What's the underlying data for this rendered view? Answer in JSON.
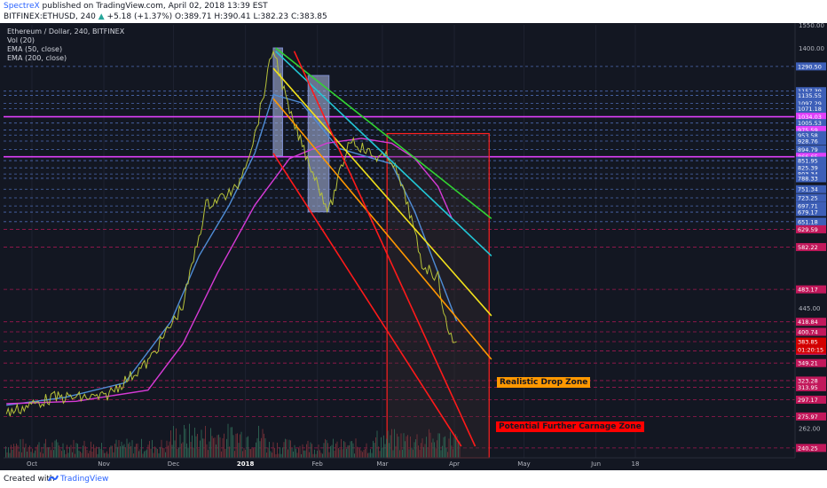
{
  "header": {
    "author": "SpectreX",
    "published": "published on TradingView.com, April 02, 2018 13:39 EST",
    "symbol": "BITFINEX:ETHUSD, 240",
    "change": "+5.18 (+1.37%)",
    "open": "O:389.71",
    "high": "H:390.41",
    "low": "L:382.23",
    "close": "C:383.85"
  },
  "legend": {
    "title": "Ethereum / Dollar, 240, BITFINEX",
    "vol": "Vol (20)",
    "ema50": "EMA (50, close)",
    "ema200": "EMA (200, close)"
  },
  "footer": {
    "created": "Created with",
    "brand": "TradingView"
  },
  "zones": {
    "realistic": "Realistic Drop Zone",
    "carnage": "Potential Further Carnage Zone"
  },
  "colors": {
    "background": "#131722",
    "ema50": "#4f8dd6",
    "ema200": "#d63ad6",
    "green_line": "#32d432",
    "cyan_line": "#22c7d6",
    "yellow_line": "#f2e21b",
    "orange_line": "#ff9800",
    "red_line": "#ff1a1a",
    "magenta_level": "#e040fb"
  },
  "chart_data": {
    "type": "line",
    "title": "Ethereum / Dollar, 240, BITFINEX",
    "y_scale": "log",
    "ylim": [
      230,
      1550
    ],
    "x_tick_labels": [
      "Oct",
      "Nov",
      "Dec",
      "2018",
      "Feb",
      "Mar",
      "Apr",
      "May",
      "Jun",
      "18"
    ],
    "x_tick_dates": [
      "2017-10-01",
      "2017-11-01",
      "2017-12-01",
      "2018-01-01",
      "2018-02-01",
      "2018-03-01",
      "2018-04-01",
      "2018-05-01",
      "2018-06-01",
      "2018-06-18"
    ],
    "y_tick_labels": [
      "1550.00",
      "1400.00",
      "445.00",
      "262.00"
    ],
    "price_levels": [
      "1290.50",
      "1157.39",
      "1135.55",
      "1097.29",
      "1071.18",
      "1034.03",
      "1005.53",
      "975.59",
      "953.58",
      "928.76",
      "894.79",
      "866.65",
      "851.95",
      "825.39",
      "803.34",
      "788.33",
      "751.34",
      "723.25",
      "697.71",
      "679.17",
      "651.18",
      "629.59",
      "582.22",
      "483.17",
      "418.84",
      "400.74",
      "383.85",
      "368.51",
      "349.21",
      "323.28",
      "313.95",
      "297.17",
      "275.97",
      "240.25"
    ],
    "magenta_levels": [
      1034.03,
      866.65
    ],
    "last_price": "383.85",
    "countdown": "01:20:15",
    "series": [
      {
        "name": "EMA (50, close)",
        "x": [
          "2017-09-20",
          "2017-10-15",
          "2017-11-10",
          "2017-11-30",
          "2017-12-12",
          "2017-12-25",
          "2018-01-05",
          "2018-01-13",
          "2018-01-25",
          "2018-02-10",
          "2018-02-25",
          "2018-03-05",
          "2018-03-15",
          "2018-03-25",
          "2018-04-02"
        ],
        "y": [
          290,
          300,
          320,
          420,
          560,
          700,
          880,
          1140,
          1100,
          900,
          860,
          840,
          680,
          520,
          420
        ]
      },
      {
        "name": "EMA (200, close)",
        "x": [
          "2017-09-20",
          "2017-10-20",
          "2017-11-20",
          "2017-12-05",
          "2017-12-20",
          "2018-01-05",
          "2018-01-20",
          "2018-02-05",
          "2018-02-20",
          "2018-03-05",
          "2018-03-15",
          "2018-03-25",
          "2018-03-31"
        ],
        "y": [
          292,
          295,
          310,
          380,
          520,
          700,
          860,
          920,
          940,
          920,
          860,
          760,
          660
        ]
      },
      {
        "name": "ETHUSD",
        "x": [
          "2017-09-20",
          "2017-10-10",
          "2017-11-01",
          "2017-11-20",
          "2017-12-05",
          "2017-12-15",
          "2017-12-28",
          "2018-01-05",
          "2018-01-13",
          "2018-01-20",
          "2018-02-06",
          "2018-02-15",
          "2018-02-25",
          "2018-03-05",
          "2018-03-12",
          "2018-03-18",
          "2018-03-25",
          "2018-03-29",
          "2018-04-02"
        ],
        "y": [
          280,
          300,
          300,
          350,
          450,
          700,
          750,
          950,
          1400,
          1050,
          680,
          940,
          870,
          860,
          700,
          540,
          510,
          400,
          383.85
        ]
      }
    ],
    "trend_channel": [
      {
        "color": "green",
        "from": [
          "2018-01-14",
          1400
        ],
        "to": [
          "2018-04-17",
          660
        ]
      },
      {
        "color": "cyan",
        "from": [
          "2018-01-14",
          1380
        ],
        "to": [
          "2018-04-17",
          560
        ]
      },
      {
        "color": "yellow",
        "from": [
          "2018-01-13",
          1280
        ],
        "to": [
          "2018-04-17",
          430
        ]
      },
      {
        "color": "orange",
        "from": [
          "2018-01-13",
          1120
        ],
        "to": [
          "2018-04-17",
          355
        ]
      },
      {
        "color": "red",
        "from": [
          "2018-01-22",
          1380
        ],
        "to": [
          "2018-04-10",
          242
        ]
      },
      {
        "color": "red",
        "from": [
          "2018-01-13",
          880
        ],
        "to": [
          "2018-04-04",
          242
        ]
      }
    ],
    "highlight_boxes": [
      {
        "from": "2018-01-13",
        "to": "2018-01-17",
        "top": 1400,
        "bottom": 870
      },
      {
        "from": "2018-01-28",
        "to": "2018-02-06",
        "top": 1240,
        "bottom": 680
      }
    ],
    "zones": [
      {
        "label": "Realistic Drop Zone",
        "from": "2018-03-03",
        "to": "2018-04-16",
        "top": 960,
        "bottom": 230
      }
    ]
  }
}
